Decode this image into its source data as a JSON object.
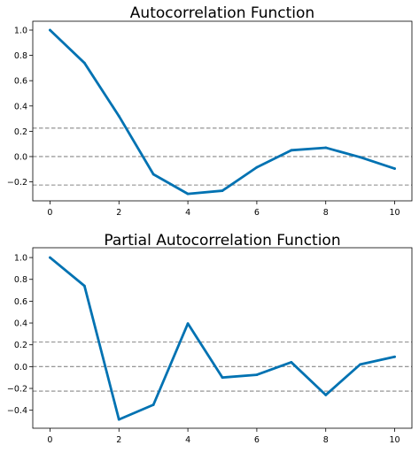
{
  "chart_data": [
    {
      "type": "line",
      "title": "Autocorrelation Function",
      "xlabel": "",
      "ylabel": "",
      "x": [
        0,
        1,
        2,
        3,
        4,
        5,
        6,
        7,
        8,
        9,
        10
      ],
      "series": [
        {
          "values": [
            1.0,
            0.74,
            0.32,
            -0.14,
            -0.295,
            -0.27,
            -0.085,
            0.05,
            0.07,
            -0.005,
            -0.095
          ],
          "color": "#0072b2"
        }
      ],
      "reference_lines": [
        0.225,
        0.0,
        -0.225
      ],
      "xlim": [
        -0.5,
        10.5
      ],
      "ylim": [
        -0.35,
        1.07
      ],
      "xticks": [
        0,
        2,
        4,
        6,
        8,
        10
      ],
      "yticks": [
        1.0,
        0.8,
        0.6,
        0.4,
        0.2,
        0.0,
        -0.2
      ],
      "xtick_labels": [
        "0",
        "2",
        "4",
        "6",
        "8",
        "10"
      ],
      "ytick_labels": [
        "1.0",
        "0.8",
        "0.6",
        "0.4",
        "0.2",
        "0.0",
        "−0.2"
      ],
      "grid": false
    },
    {
      "type": "line",
      "title": "Partial Autocorrelation Function",
      "xlabel": "",
      "ylabel": "",
      "x": [
        0,
        1,
        2,
        3,
        4,
        5,
        6,
        7,
        8,
        9,
        10
      ],
      "series": [
        {
          "values": [
            1.0,
            0.74,
            -0.485,
            -0.35,
            0.395,
            -0.1,
            -0.075,
            0.04,
            -0.26,
            0.02,
            0.09
          ],
          "color": "#0072b2"
        }
      ],
      "reference_lines": [
        0.225,
        0.0,
        -0.225
      ],
      "xlim": [
        -0.5,
        10.5
      ],
      "ylim": [
        -0.565,
        1.09
      ],
      "xticks": [
        0,
        2,
        4,
        6,
        8,
        10
      ],
      "yticks": [
        1.0,
        0.8,
        0.6,
        0.4,
        0.2,
        0.0,
        -0.2,
        -0.4
      ],
      "xtick_labels": [
        "0",
        "2",
        "4",
        "6",
        "8",
        "10"
      ],
      "ytick_labels": [
        "1.0",
        "0.8",
        "0.6",
        "0.4",
        "0.2",
        "0.0",
        "−0.2",
        "−0.4"
      ],
      "grid": false
    }
  ]
}
